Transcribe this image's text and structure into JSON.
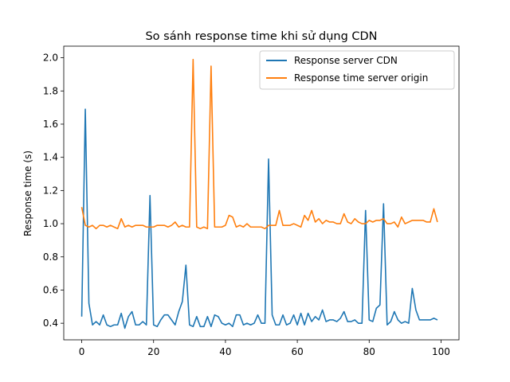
{
  "chart_data": {
    "type": "line",
    "title": "So sánh response time khi sử dụng CDN",
    "xlabel": "",
    "ylabel": "Response time (s)",
    "xlim": [
      -5,
      105
    ],
    "ylim": [
      0.3,
      2.07
    ],
    "x_ticks": [
      0,
      20,
      40,
      60,
      80,
      100
    ],
    "y_ticks": [
      0.4,
      0.6,
      0.8,
      1.0,
      1.2,
      1.4,
      1.6,
      1.8,
      2.0
    ],
    "x_tick_labels": [
      "0",
      "20",
      "40",
      "60",
      "80",
      "100"
    ],
    "y_tick_labels": [
      "0.4",
      "0.6",
      "0.8",
      "1.0",
      "1.2",
      "1.4",
      "1.6",
      "1.8",
      "2.0"
    ],
    "legend": {
      "position": "top-right"
    },
    "grid": false,
    "x": [
      0,
      1,
      2,
      3,
      4,
      5,
      6,
      7,
      8,
      9,
      10,
      11,
      12,
      13,
      14,
      15,
      16,
      17,
      18,
      19,
      20,
      21,
      22,
      23,
      24,
      25,
      26,
      27,
      28,
      29,
      30,
      31,
      32,
      33,
      34,
      35,
      36,
      37,
      38,
      39,
      40,
      41,
      42,
      43,
      44,
      45,
      46,
      47,
      48,
      49,
      50,
      51,
      52,
      53,
      54,
      55,
      56,
      57,
      58,
      59,
      60,
      61,
      62,
      63,
      64,
      65,
      66,
      67,
      68,
      69,
      70,
      71,
      72,
      73,
      74,
      75,
      76,
      77,
      78,
      79,
      80,
      81,
      82,
      83,
      84,
      85,
      86,
      87,
      88,
      89,
      90,
      91,
      92,
      93,
      94,
      95,
      96,
      97,
      98,
      99
    ],
    "series": [
      {
        "name": "Response server CDN",
        "color": "#1f77b4",
        "values": [
          0.44,
          1.69,
          0.52,
          0.39,
          0.41,
          0.39,
          0.45,
          0.39,
          0.38,
          0.39,
          0.39,
          0.46,
          0.37,
          0.44,
          0.47,
          0.39,
          0.39,
          0.41,
          0.39,
          1.17,
          0.39,
          0.38,
          0.42,
          0.45,
          0.45,
          0.42,
          0.39,
          0.47,
          0.53,
          0.75,
          0.39,
          0.38,
          0.44,
          0.38,
          0.38,
          0.44,
          0.38,
          0.45,
          0.44,
          0.4,
          0.39,
          0.4,
          0.38,
          0.45,
          0.45,
          0.39,
          0.4,
          0.39,
          0.4,
          0.45,
          0.4,
          0.4,
          1.39,
          0.45,
          0.39,
          0.39,
          0.45,
          0.39,
          0.4,
          0.45,
          0.39,
          0.46,
          0.39,
          0.46,
          0.41,
          0.44,
          0.42,
          0.48,
          0.41,
          0.42,
          0.42,
          0.41,
          0.43,
          0.47,
          0.41,
          0.41,
          0.42,
          0.4,
          0.4,
          1.08,
          0.42,
          0.41,
          0.49,
          0.51,
          1.12,
          0.39,
          0.41,
          0.47,
          0.42,
          0.4,
          0.41,
          0.4,
          0.61,
          0.48,
          0.42,
          0.42,
          0.42,
          0.42,
          0.43,
          0.42
        ]
      },
      {
        "name": "Response time server origin",
        "color": "#ff7f0e",
        "values": [
          1.1,
          0.99,
          0.98,
          0.99,
          0.97,
          0.99,
          0.99,
          0.98,
          0.99,
          0.98,
          0.97,
          1.03,
          0.98,
          0.99,
          0.98,
          0.99,
          0.99,
          0.99,
          0.98,
          0.98,
          0.98,
          0.99,
          0.99,
          0.99,
          0.98,
          0.99,
          1.01,
          0.98,
          0.99,
          0.98,
          0.98,
          1.99,
          0.98,
          0.97,
          0.98,
          0.97,
          1.95,
          0.98,
          0.98,
          0.98,
          0.99,
          1.05,
          1.04,
          0.98,
          0.99,
          0.98,
          1.0,
          0.98,
          0.98,
          0.98,
          0.98,
          0.97,
          0.99,
          0.99,
          0.99,
          1.08,
          0.99,
          0.99,
          0.99,
          1.0,
          0.99,
          0.98,
          1.05,
          1.02,
          1.08,
          1.01,
          1.03,
          1.0,
          1.02,
          1.01,
          1.01,
          1.0,
          1.0,
          1.06,
          1.01,
          1.0,
          1.03,
          1.01,
          1.0,
          1.0,
          1.02,
          1.01,
          1.02,
          1.02,
          1.03,
          1.0,
          1.0,
          1.01,
          0.98,
          1.04,
          1.0,
          1.01,
          1.02,
          1.02,
          1.02,
          1.02,
          1.01,
          1.01,
          1.09,
          1.01
        ]
      }
    ]
  }
}
